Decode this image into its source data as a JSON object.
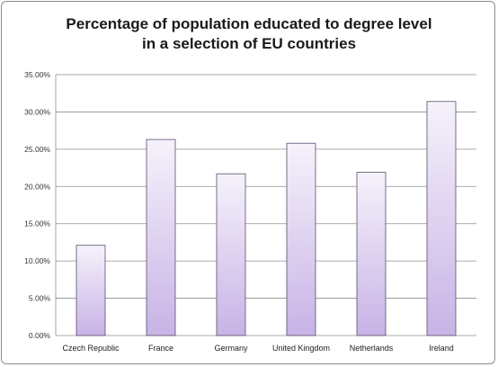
{
  "chart_data": {
    "type": "bar",
    "title_lines": [
      "Percentage of population educated to degree level",
      "in a selection of EU countries"
    ],
    "categories": [
      "Czech Republic",
      "France",
      "Germany",
      "United Kingdom",
      "Netherlands",
      "Ireland"
    ],
    "values": [
      12.1,
      26.3,
      21.7,
      25.8,
      21.9,
      31.4
    ],
    "y_ticks": [
      "0.00%",
      "5.00%",
      "10.00%",
      "15.00%",
      "20.00%",
      "25.00%",
      "30.00%",
      "35.00%"
    ],
    "ylim": [
      0,
      35
    ],
    "grid": true,
    "legend": "none",
    "bar_color_top": "#f6f2fb",
    "bar_color_bottom": "#c7b3e6",
    "bar_border": "#5a4d6e",
    "gridline_color": "#8f8f8f"
  }
}
